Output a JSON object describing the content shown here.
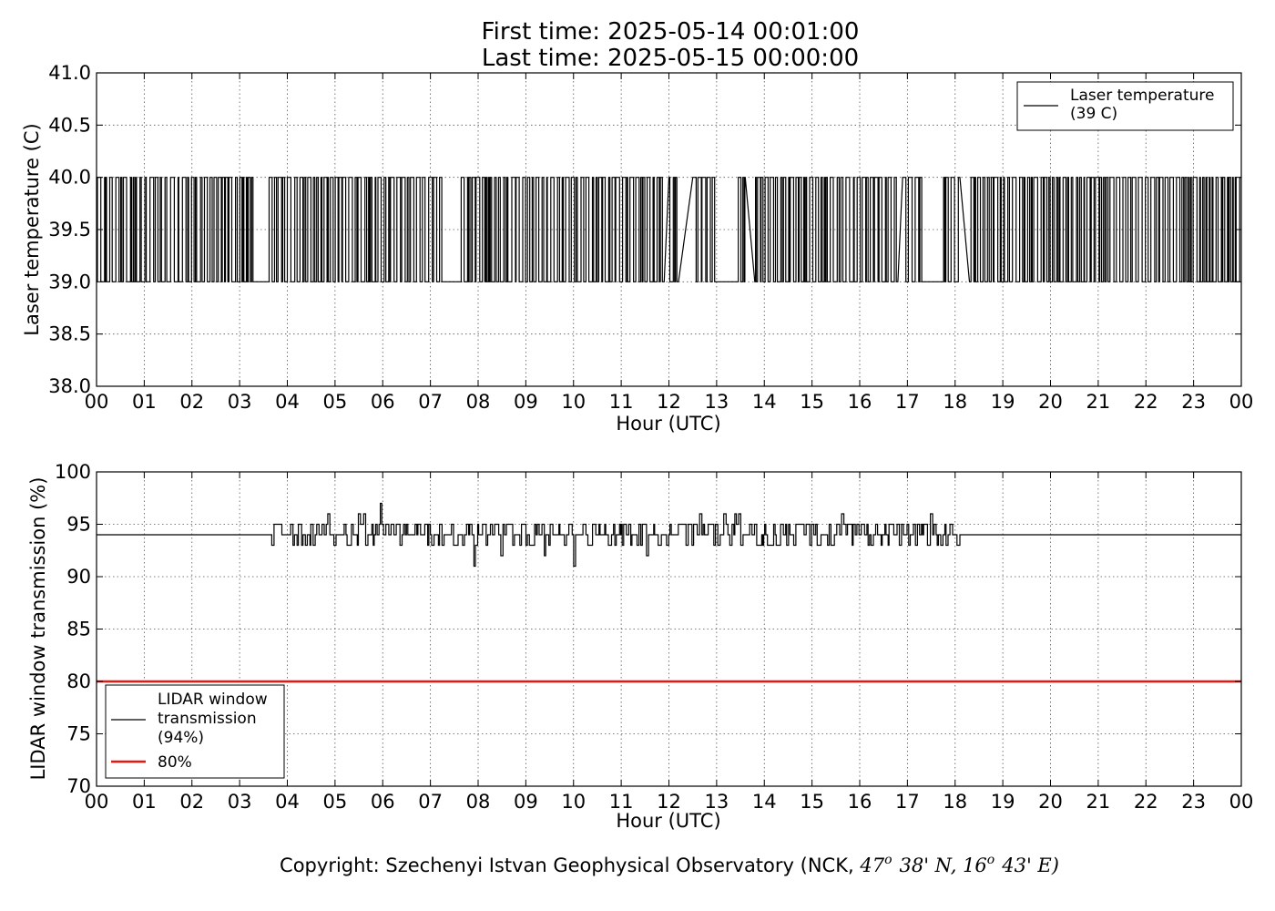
{
  "title_lines": [
    "First time: 2025-05-14 00:01:00",
    "Last time: 2025-05-15 00:00:00"
  ],
  "copyright": {
    "prefix": "Copyright: Szechenyi Istvan Geophysical Observatory (NCK, ",
    "lat_deg": "47",
    "lat_rest": "38' N, ",
    "lon_deg": "16",
    "lon_rest": "43' E)",
    "degree_mark": "o"
  },
  "colors": {
    "series": "#000000",
    "threshold": "#e8170f"
  },
  "chart_data": [
    {
      "type": "line",
      "ylabel": "Laser temperature (C)",
      "xlabel": "Hour (UTC)",
      "xlim": [
        0,
        24
      ],
      "ylim": [
        38.0,
        41.0
      ],
      "x_ticks": [
        0,
        1,
        2,
        3,
        4,
        5,
        6,
        7,
        8,
        9,
        10,
        11,
        12,
        13,
        14,
        15,
        16,
        17,
        18,
        19,
        20,
        21,
        22,
        23,
        24
      ],
      "x_tick_labels": [
        "00",
        "01",
        "02",
        "03",
        "04",
        "05",
        "06",
        "07",
        "08",
        "09",
        "10",
        "11",
        "12",
        "13",
        "14",
        "15",
        "16",
        "17",
        "18",
        "19",
        "20",
        "21",
        "22",
        "23",
        "00"
      ],
      "y_ticks": [
        38.0,
        38.5,
        39.0,
        39.5,
        40.0,
        40.5,
        41.0
      ],
      "y_tick_labels": [
        "38.0",
        "38.5",
        "39.0",
        "39.5",
        "40.0",
        "40.5",
        "41.0"
      ],
      "grid": true,
      "legend_position": "top-right",
      "series": [
        {
          "name": "Laser temperature\n(39 C)",
          "color": "#000000",
          "pattern": "toggles between 39.0 and 40.0",
          "levels": [
            39.0,
            40.0
          ],
          "dense_intervals_hours": [
            [
              0.0,
              3.3
            ],
            [
              3.6,
              7.3
            ],
            [
              7.6,
              11.9
            ],
            [
              12.0,
              12.2
            ],
            [
              12.5,
              13.0
            ],
            [
              13.4,
              13.6
            ],
            [
              13.8,
              16.8
            ],
            [
              16.9,
              17.3
            ],
            [
              17.7,
              18.1
            ],
            [
              18.3,
              24.0
            ]
          ],
          "flat_39_intervals_hours": [
            [
              3.3,
              3.6
            ],
            [
              7.3,
              7.6
            ],
            [
              13.0,
              13.4
            ],
            [
              17.3,
              17.7
            ]
          ]
        }
      ]
    },
    {
      "type": "line",
      "ylabel": "LIDAR window transmission (%)",
      "xlabel": "Hour (UTC)",
      "xlim": [
        0,
        24
      ],
      "ylim": [
        70,
        100
      ],
      "x_ticks": [
        0,
        1,
        2,
        3,
        4,
        5,
        6,
        7,
        8,
        9,
        10,
        11,
        12,
        13,
        14,
        15,
        16,
        17,
        18,
        19,
        20,
        21,
        22,
        23,
        24
      ],
      "x_tick_labels": [
        "00",
        "01",
        "02",
        "03",
        "04",
        "05",
        "06",
        "07",
        "08",
        "09",
        "10",
        "11",
        "12",
        "13",
        "14",
        "15",
        "16",
        "17",
        "18",
        "19",
        "20",
        "21",
        "22",
        "23",
        "00"
      ],
      "y_ticks": [
        70,
        75,
        80,
        85,
        90,
        95,
        100
      ],
      "y_tick_labels": [
        "70",
        "75",
        "80",
        "85",
        "90",
        "95",
        "100"
      ],
      "grid": true,
      "legend_position": "lower-left",
      "series": [
        {
          "name": "LIDAR window\ntransmission\n(94%)",
          "color": "#000000",
          "baseline": 94,
          "flat_intervals_hours": [
            [
              0.0,
              3.6
            ],
            [
              18.2,
              24.0
            ]
          ],
          "fluctuation_profile": [
            {
              "from": 3.6,
              "to": 5.8,
              "min": 93,
              "max": 96
            },
            {
              "from": 5.8,
              "to": 7.0,
              "min": 93,
              "max": 97
            },
            {
              "from": 7.0,
              "to": 8.2,
              "min": 91,
              "max": 96
            },
            {
              "from": 8.2,
              "to": 10.3,
              "min": 91,
              "max": 95
            },
            {
              "from": 10.3,
              "to": 11.0,
              "min": 92,
              "max": 95
            },
            {
              "from": 11.0,
              "to": 11.7,
              "min": 92,
              "max": 96
            },
            {
              "from": 11.7,
              "to": 18.2,
              "min": 93,
              "max": 96
            }
          ]
        },
        {
          "name": "80%",
          "color": "#e8170f",
          "y": 80
        }
      ]
    }
  ]
}
